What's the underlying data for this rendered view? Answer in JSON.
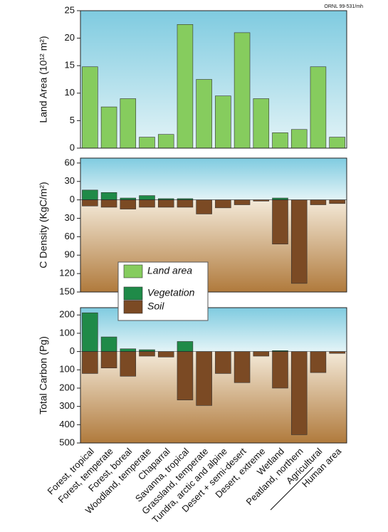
{
  "note": "ORNL 99-531/mh",
  "chart_data": [
    {
      "type": "bar",
      "ylabel": "Land Area (10¹² m²)",
      "categories": [
        "Forest, tropical",
        "Forest, temperate",
        "Forest, boreal",
        "Woodland, temperate",
        "Chaparral",
        "Savanna, tropical",
        "Grassland, temperate",
        "Tundra, arctic and alpine",
        "Desert + semi-desert",
        "Desert, extreme",
        "Wetland",
        "Peatland, northern",
        "Agricultural",
        "Human area"
      ],
      "series": [
        {
          "name": "Land area",
          "color": "#86cc5e",
          "values": [
            14.8,
            7.5,
            9,
            2,
            2.5,
            22.5,
            12.5,
            9.5,
            21,
            9,
            2.8,
            3.4,
            14.8,
            2
          ]
        }
      ],
      "ylim": [
        0,
        25
      ],
      "yticks": [
        0,
        5,
        10,
        15,
        20,
        25
      ]
    },
    {
      "type": "bar",
      "ylabel": "C Density (KgC/m²)",
      "series": [
        {
          "name": "Vegetation",
          "color": "#1f8a48",
          "values": [
            16,
            12,
            3,
            7,
            2,
            2,
            0,
            0,
            0,
            0,
            3,
            0,
            0,
            0
          ]
        },
        {
          "name": "Soil",
          "color": "#7b4a24",
          "values": [
            -10,
            -12,
            -15,
            -12,
            -12,
            -12,
            -23,
            -13,
            -8,
            -2,
            -72,
            -136,
            -8,
            -6
          ]
        }
      ],
      "ylim": [
        -150,
        68
      ],
      "yticks": [
        60,
        30,
        0,
        {
          "value": -30,
          "label": "30"
        },
        {
          "value": -60,
          "label": "60"
        },
        {
          "value": -90,
          "label": "90"
        },
        {
          "value": -120,
          "label": "120"
        },
        {
          "value": -150,
          "label": "150"
        }
      ]
    },
    {
      "type": "bar",
      "ylabel": "Total Carbon (Pg)",
      "series": [
        {
          "color": "#1f8a48",
          "values": [
            212,
            80,
            15,
            10,
            0,
            55,
            0,
            0,
            0,
            0,
            5,
            0,
            0,
            0
          ]
        },
        {
          "color": "#7b4a24",
          "values": [
            -120,
            -90,
            -135,
            -25,
            -30,
            -265,
            -295,
            -120,
            -170,
            -25,
            -200,
            -455,
            -115,
            -10
          ]
        }
      ],
      "ylim": [
        -500,
        240
      ],
      "yticks": [
        200,
        100,
        0,
        {
          "value": -100,
          "label": "100"
        },
        {
          "value": -200,
          "label": "200"
        },
        {
          "value": -300,
          "label": "300"
        },
        {
          "value": -400,
          "label": "400"
        },
        {
          "value": -500,
          "label": "500"
        }
      ]
    }
  ]
}
